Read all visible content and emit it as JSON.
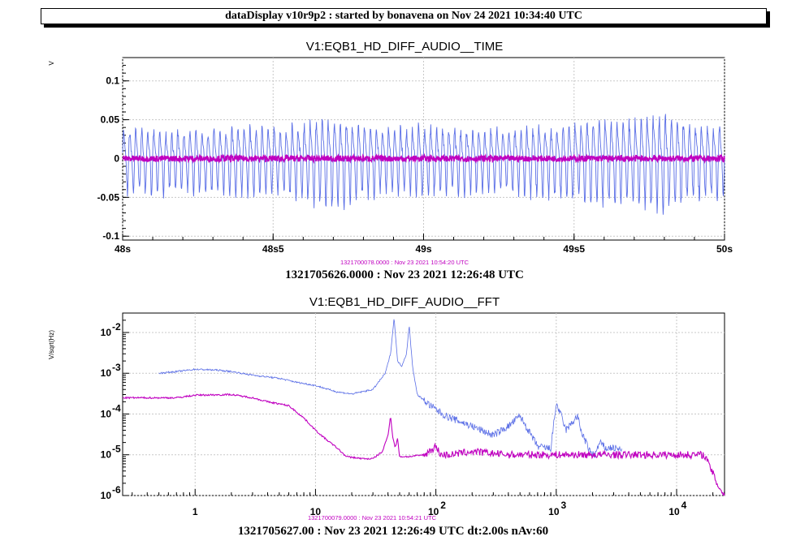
{
  "header": {
    "title": "dataDisplay v10r9p2 : started by bonavena on Nov 24 2021 10:34:40 UTC"
  },
  "colors": {
    "blue": "#5a6ee6",
    "magenta": "#c000c0",
    "grid": "#c8c8c8"
  },
  "chart_data": [
    {
      "type": "line",
      "title": "V1:EQB1_HD_DIFF_AUDIO__TIME",
      "ylabel": "V",
      "xlim": [
        48.0,
        50.0
      ],
      "ylim": [
        -0.105,
        0.13
      ],
      "x_ticks": [
        {
          "v": 48.0,
          "label": "48s"
        },
        {
          "v": 48.5,
          "label": "48s5"
        },
        {
          "v": 49.0,
          "label": "49s"
        },
        {
          "v": 49.5,
          "label": "49s5"
        },
        {
          "v": 50.0,
          "label": "50s"
        }
      ],
      "y_ticks": [
        {
          "v": 0.1,
          "label": "0.1"
        },
        {
          "v": 0.05,
          "label": "0.05"
        },
        {
          "v": 0.0,
          "label": "0"
        },
        {
          "v": -0.05,
          "label": "-0.05"
        },
        {
          "v": -0.1,
          "label": "-0.1"
        }
      ],
      "grid": true,
      "reference_time": "1321700078.0000 : Nov 23 2021 10:54:20 UTC",
      "current_time": "1321705626.0000 : Nov 23 2021 12:26:48 UTC",
      "series": [
        {
          "color": "#5a6ee6",
          "oscillation_hz": 50,
          "x": [
            48.0,
            48.1,
            48.2,
            48.3,
            48.4,
            48.5,
            48.6,
            48.7,
            48.8,
            48.9,
            49.0,
            49.1,
            49.2,
            49.3,
            49.4,
            49.5,
            49.6,
            49.7,
            49.8,
            49.9,
            50.0
          ],
          "amplitude": [
            0.045,
            0.045,
            0.04,
            0.045,
            0.05,
            0.045,
            0.055,
            0.065,
            0.05,
            0.045,
            0.05,
            0.045,
            0.045,
            0.045,
            0.05,
            0.055,
            0.06,
            0.06,
            0.065,
            0.055,
            0.05
          ]
        },
        {
          "color": "#c000c0",
          "oscillation_hz": 0,
          "x": [
            48.0,
            50.0
          ],
          "amplitude": [
            0.004,
            0.004
          ]
        }
      ]
    },
    {
      "type": "line",
      "title": "V1:EQB1_HD_DIFF_AUDIO__FFT",
      "ylabel": "V/sqrt(Hz)",
      "xscale": "log",
      "yscale": "log",
      "xlim": [
        0.25,
        25000
      ],
      "ylim": [
        1e-06,
        0.03
      ],
      "x_ticks": [
        {
          "v": 1,
          "label": "1"
        },
        {
          "v": 10,
          "label": "10"
        },
        {
          "v": 100,
          "base": "10",
          "exp": "2"
        },
        {
          "v": 1000,
          "base": "10",
          "exp": "3"
        },
        {
          "v": 10000,
          "base": "10",
          "exp": "4"
        }
      ],
      "y_ticks": [
        {
          "v": 0.01,
          "base": "10",
          "exp": "-2"
        },
        {
          "v": 0.001,
          "base": "10",
          "exp": "-3"
        },
        {
          "v": 0.0001,
          "base": "10",
          "exp": "-4"
        },
        {
          "v": 1e-05,
          "base": "10",
          "exp": "-5"
        },
        {
          "v": 1e-06,
          "base": "10",
          "exp": "-6"
        }
      ],
      "grid": true,
      "reference_time": "1321700079.0000 : Nov 23 2021 10:54:21 UTC",
      "current_time": "1321705627.00 : Nov 23 2021 12:26:49 UTC dt:2.00s nAv:60",
      "series": [
        {
          "color": "#5a6ee6",
          "x": [
            0.5,
            0.7,
            1.0,
            1.5,
            2.0,
            3.0,
            5.0,
            7.0,
            10,
            15,
            20,
            30,
            38,
            42,
            45,
            48,
            52,
            57,
            60,
            64,
            70,
            90,
            120,
            200,
            300,
            400,
            500,
            600,
            700,
            900,
            1000,
            1100,
            1200,
            1350,
            1500,
            1600,
            1900,
            2100,
            2300,
            2600,
            2900,
            3500
          ],
          "y": [
            0.001,
            0.0011,
            0.00125,
            0.0012,
            0.0011,
            0.0009,
            0.00075,
            0.0006,
            0.0005,
            0.00035,
            0.00031,
            0.0004,
            0.001,
            0.003,
            0.023,
            0.002,
            0.0015,
            0.003,
            0.015,
            0.0015,
            0.0003,
            0.00016,
            9e-05,
            5e-05,
            3e-05,
            5e-05,
            9e-05,
            3.5e-05,
            1.6e-05,
            1.4e-05,
            0.00018,
            9e-05,
            4e-05,
            6e-05,
            9e-05,
            4e-05,
            1.2e-05,
            1e-05,
            2e-05,
            1.4e-05,
            1.5e-05,
            1.3e-05
          ]
        },
        {
          "color": "#c000c0",
          "x": [
            0.25,
            0.7,
            1.0,
            2.0,
            3.0,
            4.0,
            6.0,
            8.0,
            10,
            12,
            15,
            18,
            25,
            30,
            36,
            40,
            42,
            44,
            46,
            48,
            50,
            60,
            80,
            100,
            110,
            130,
            200,
            400,
            1000,
            3000,
            10000,
            17000,
            18000,
            20000,
            22000,
            25000
          ],
          "y": [
            0.00025,
            0.00025,
            0.00029,
            0.0003,
            0.00025,
            0.0002,
            0.00016,
            8e-05,
            4e-05,
            2.5e-05,
            1.5e-05,
            9e-06,
            8e-06,
            8e-06,
            1.2e-05,
            3e-05,
            9e-05,
            2.5e-05,
            1.5e-05,
            2.5e-05,
            9e-06,
            9e-06,
            1e-05,
            1.6e-05,
            1e-05,
            1e-05,
            1.2e-05,
            1e-05,
            1e-05,
            1e-05,
            1e-05,
            1e-05,
            7e-06,
            3.5e-06,
            1.8e-06,
            1e-06
          ]
        }
      ]
    }
  ]
}
